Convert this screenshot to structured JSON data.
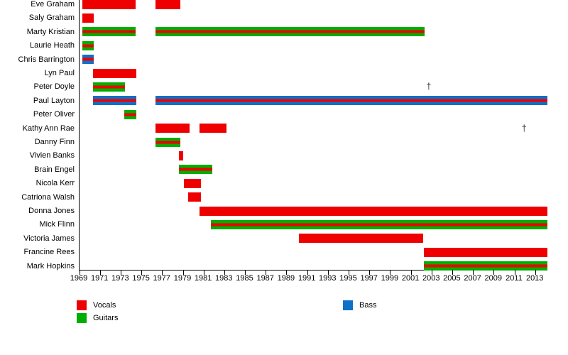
{
  "chart_data": {
    "type": "bar",
    "subtype": "membership-timeline",
    "x_axis": {
      "min": 1969,
      "max": 2014.15,
      "tick_years": [
        1969,
        1971,
        1973,
        1975,
        1977,
        1979,
        1981,
        1983,
        1985,
        1987,
        1989,
        1991,
        1993,
        1995,
        1997,
        1999,
        2001,
        2003,
        2005,
        2007,
        2009,
        2011,
        2013
      ]
    },
    "legend": [
      {
        "label": "Vocals",
        "color": "#EE0000"
      },
      {
        "label": "Guitars",
        "color": "#00AE00"
      },
      {
        "label": "Bass",
        "color": "#0F70C8"
      }
    ],
    "deceased_marker_symbol": "†",
    "members": [
      {
        "name": "Eve Graham",
        "roles": [
          "Vocals"
        ],
        "stints": [
          [
            1969.3,
            1974.4
          ],
          [
            1976.3,
            1978.7
          ]
        ]
      },
      {
        "name": "Saly Graham",
        "roles": [
          "Vocals"
        ],
        "stints": [
          [
            1969.3,
            1970.4
          ]
        ]
      },
      {
        "name": "Marty Kristian",
        "roles": [
          "Vocals",
          "Guitars"
        ],
        "stints": [
          [
            1969.3,
            1974.4
          ],
          [
            1976.3,
            2002.3
          ]
        ]
      },
      {
        "name": "Laurie Heath",
        "roles": [
          "Vocals",
          "Guitars"
        ],
        "stints": [
          [
            1969.3,
            1970.4
          ]
        ]
      },
      {
        "name": "Chris Barrington",
        "roles": [
          "Vocals",
          "Bass"
        ],
        "stints": [
          [
            1969.3,
            1970.4
          ]
        ]
      },
      {
        "name": "Lyn Paul",
        "roles": [
          "Vocals"
        ],
        "stints": [
          [
            1970.3,
            1974.5
          ]
        ]
      },
      {
        "name": "Peter Doyle",
        "roles": [
          "Vocals",
          "Guitars"
        ],
        "stints": [
          [
            1970.3,
            1973.4
          ]
        ],
        "dagger_year": 2002.7
      },
      {
        "name": "Paul Layton",
        "roles": [
          "Vocals",
          "Bass"
        ],
        "stints": [
          [
            1970.3,
            1974.5
          ],
          [
            1976.3,
            2014.15
          ]
        ]
      },
      {
        "name": "Peter Oliver",
        "roles": [
          "Vocals",
          "Guitars"
        ],
        "stints": [
          [
            1973.3,
            1974.5
          ]
        ]
      },
      {
        "name": "Kathy Ann Rae",
        "roles": [
          "Vocals"
        ],
        "stints": [
          [
            1976.3,
            1979.6
          ],
          [
            1980.6,
            1983.2
          ]
        ],
        "dagger_year": 2011.9
      },
      {
        "name": "Danny Finn",
        "roles": [
          "Vocals",
          "Guitars"
        ],
        "stints": [
          [
            1976.3,
            1978.7
          ]
        ]
      },
      {
        "name": "Vivien Banks",
        "roles": [
          "Vocals"
        ],
        "stints": [
          [
            1978.6,
            1979.0
          ]
        ]
      },
      {
        "name": "Brain Engel",
        "roles": [
          "Vocals",
          "Guitars"
        ],
        "stints": [
          [
            1978.6,
            1981.8
          ]
        ]
      },
      {
        "name": "Nicola Kerr",
        "roles": [
          "Vocals"
        ],
        "stints": [
          [
            1979.1,
            1980.7
          ]
        ]
      },
      {
        "name": "Catriona Walsh",
        "roles": [
          "Vocals"
        ],
        "stints": [
          [
            1979.5,
            1980.7
          ]
        ]
      },
      {
        "name": "Donna Jones",
        "roles": [
          "Vocals"
        ],
        "stints": [
          [
            1980.6,
            2014.15
          ]
        ]
      },
      {
        "name": "Mick Flinn",
        "roles": [
          "Vocals",
          "Guitars"
        ],
        "stints": [
          [
            1981.7,
            2014.15
          ]
        ]
      },
      {
        "name": "Victoria James",
        "roles": [
          "Vocals"
        ],
        "stints": [
          [
            1990.2,
            2002.2
          ]
        ]
      },
      {
        "name": "Francine Rees",
        "roles": [
          "Vocals"
        ],
        "stints": [
          [
            2002.2,
            2014.15
          ]
        ]
      },
      {
        "name": "Mark Hopkins",
        "roles": [
          "Vocals",
          "Guitars"
        ],
        "stints": [
          [
            2002.2,
            2014.15
          ]
        ]
      }
    ]
  }
}
